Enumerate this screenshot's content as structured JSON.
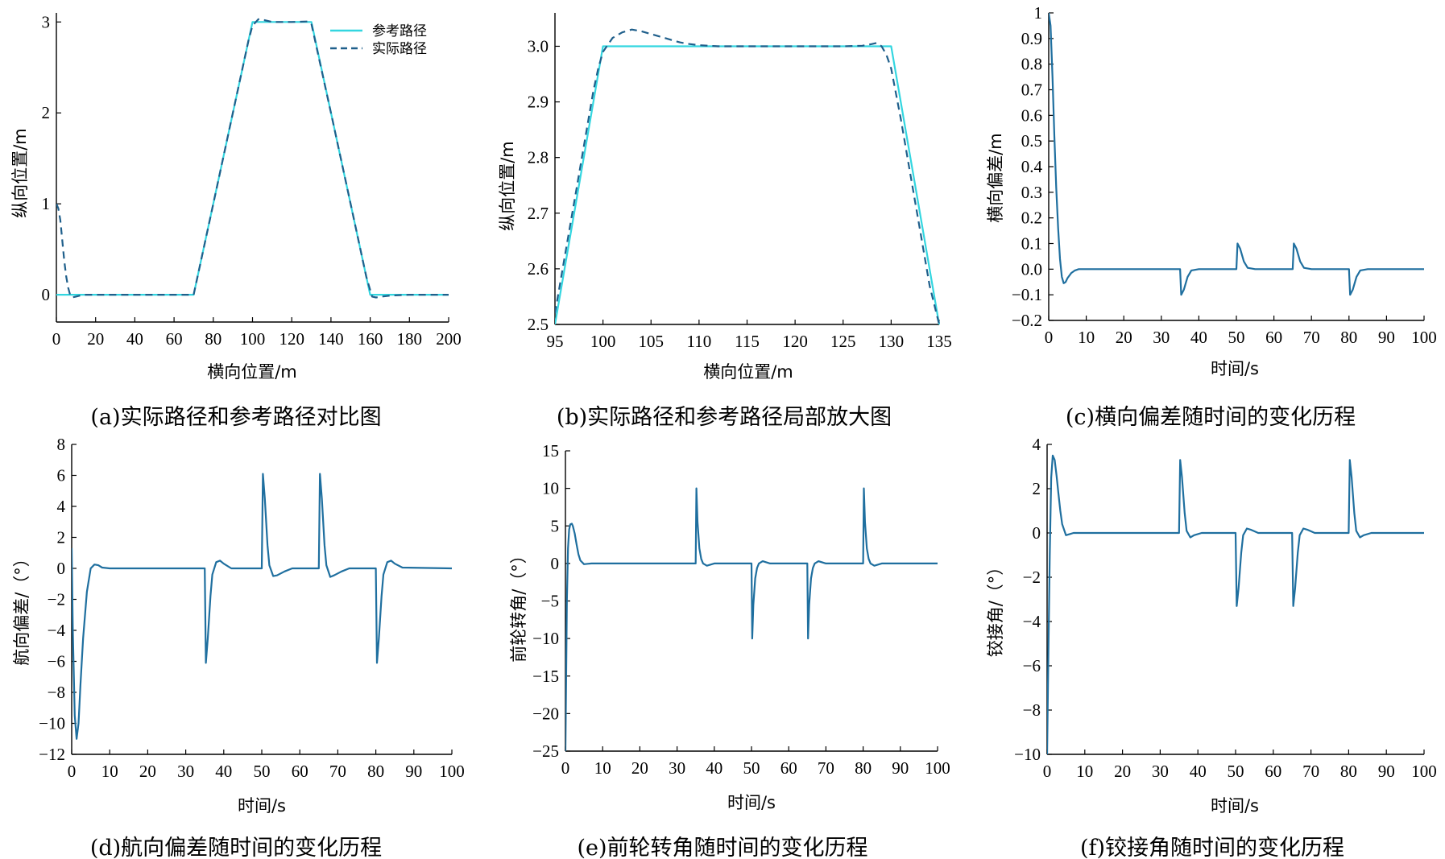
{
  "colors": {
    "reference": "#33d6e0",
    "actual": "#1f5f8b",
    "signal": "#1f6f9f",
    "axis": "#000000"
  },
  "chart_data": [
    {
      "id": "a",
      "type": "line",
      "caption": "(a)实际路径和参考路径对比图",
      "xlabel": "横向位置/m",
      "ylabel": "纵向位置/m",
      "xlim": [
        0,
        200
      ],
      "ylim": [
        -0.3,
        3.1
      ],
      "xticks": [
        0,
        20,
        40,
        60,
        80,
        100,
        120,
        140,
        160,
        180,
        200
      ],
      "yticks": [
        0,
        1,
        2,
        3
      ],
      "legend": {
        "position": "top-right",
        "entries": [
          "参考路径",
          "实际路径"
        ]
      },
      "series": [
        {
          "name": "参考路径",
          "style": "solid",
          "color": "#33d6e0",
          "x": [
            0,
            70,
            100,
            130,
            160,
            200
          ],
          "y": [
            0,
            0,
            3,
            3,
            0,
            0
          ]
        },
        {
          "name": "实际路径",
          "style": "dashed",
          "color": "#1f5f8b",
          "x": [
            0,
            1,
            2,
            3,
            4,
            5,
            6,
            7,
            8,
            10,
            12,
            15,
            20,
            30,
            50,
            70,
            80,
            90,
            98,
            100,
            103,
            106,
            110,
            120,
            128,
            130,
            140,
            150,
            158,
            161,
            163,
            166,
            170,
            180,
            200
          ],
          "y": [
            1.0,
            0.95,
            0.82,
            0.6,
            0.38,
            0.2,
            0.08,
            0.0,
            -0.03,
            -0.02,
            -0.01,
            0,
            0,
            0,
            0,
            0,
            1.0,
            2.0,
            2.8,
            2.96,
            3.03,
            3.02,
            3.0,
            3.0,
            3.005,
            2.98,
            2.0,
            1.0,
            0.2,
            -0.02,
            -0.03,
            -0.02,
            -0.01,
            0,
            0
          ]
        }
      ]
    },
    {
      "id": "b",
      "type": "line",
      "caption": "(b)实际路径和参考路径局部放大图",
      "xlabel": "横向位置/m",
      "ylabel": "纵向位置/m",
      "xlim": [
        95,
        135
      ],
      "ylim": [
        2.5,
        3.06
      ],
      "xticks": [
        95,
        100,
        105,
        110,
        115,
        120,
        125,
        130,
        135
      ],
      "yticks": [
        2.5,
        2.6,
        2.7,
        2.8,
        2.9,
        3.0
      ],
      "ytick_labels": [
        "2.5",
        "2.6",
        "2.7",
        "2.8",
        "2.9",
        "3.0"
      ],
      "series": [
        {
          "name": "参考路径",
          "style": "solid",
          "color": "#33d6e0",
          "x": [
            95,
            100,
            130,
            135
          ],
          "y": [
            2.5,
            3.0,
            3.0,
            2.5
          ]
        },
        {
          "name": "实际路径",
          "style": "dashed",
          "color": "#1f5f8b",
          "x": [
            95,
            96,
            97,
            98,
            99,
            99.5,
            100,
            101,
            102,
            103,
            104,
            105,
            106,
            107,
            108,
            109,
            110,
            112,
            115,
            120,
            125,
            127,
            128,
            128.5,
            129,
            129.5,
            130,
            131,
            132,
            133,
            134,
            135
          ],
          "y": [
            2.52,
            2.62,
            2.72,
            2.82,
            2.92,
            2.96,
            2.99,
            3.015,
            3.025,
            3.03,
            3.027,
            3.022,
            3.017,
            3.012,
            3.007,
            3.004,
            3.002,
            3.0,
            3.0,
            3.0,
            3.0,
            3.001,
            3.004,
            3.006,
            3.0,
            2.985,
            2.96,
            2.87,
            2.77,
            2.67,
            2.57,
            2.5
          ]
        }
      ]
    },
    {
      "id": "c",
      "type": "line",
      "caption": "(c)横向偏差随时间的变化历程",
      "xlabel": "时间/s",
      "ylabel": "横向偏差/m",
      "xlim": [
        0,
        100
      ],
      "ylim": [
        -0.2,
        1.0
      ],
      "xticks": [
        0,
        10,
        20,
        30,
        40,
        50,
        60,
        70,
        80,
        90,
        100
      ],
      "yticks": [
        -0.2,
        -0.1,
        0.0,
        0.1,
        0.2,
        0.3,
        0.4,
        0.5,
        0.6,
        0.7,
        0.8,
        0.9,
        1.0
      ],
      "ytick_labels": [
        "−0.2",
        "−0.1",
        "0.0",
        "0.1",
        "0.2",
        "0.3",
        "0.4",
        "0.5",
        "0.6",
        "0.7",
        "0.8",
        "0.9",
        "1"
      ],
      "series": [
        {
          "color": "#1f6f9f",
          "x": [
            0,
            0.5,
            1,
            1.5,
            2,
            2.5,
            3,
            3.5,
            4,
            4.5,
            5,
            6,
            7,
            8,
            10,
            35,
            35.3,
            36,
            37,
            38,
            40,
            50,
            50.3,
            51,
            52,
            53,
            55,
            65,
            65.3,
            66,
            67,
            68,
            70,
            80,
            80.3,
            81,
            82,
            83,
            85,
            100
          ],
          "y": [
            1.0,
            0.95,
            0.75,
            0.52,
            0.32,
            0.16,
            0.04,
            -0.03,
            -0.055,
            -0.05,
            -0.035,
            -0.015,
            -0.005,
            0,
            0,
            0,
            -0.1,
            -0.08,
            -0.03,
            -0.005,
            0,
            0,
            0.1,
            0.08,
            0.03,
            0.005,
            0,
            0,
            0.1,
            0.08,
            0.03,
            0.005,
            0,
            0,
            -0.1,
            -0.08,
            -0.03,
            -0.005,
            0,
            0
          ]
        }
      ]
    },
    {
      "id": "d",
      "type": "line",
      "caption": "(d)航向偏差随时间的变化历程",
      "xlabel": "时间/s",
      "ylabel": "航向偏差/（°）",
      "xlim": [
        0,
        100
      ],
      "ylim": [
        -12,
        8
      ],
      "xticks": [
        0,
        10,
        20,
        30,
        40,
        50,
        60,
        70,
        80,
        90,
        100
      ],
      "yticks": [
        -12,
        -10,
        -8,
        -6,
        -4,
        -2,
        0,
        2,
        4,
        6,
        8
      ],
      "ytick_labels": [
        "−12",
        "−10",
        "−8",
        "−6",
        "−4",
        "−2",
        "0",
        "2",
        "4",
        "6",
        "8"
      ],
      "series": [
        {
          "color": "#1f6f9f",
          "x": [
            0,
            0.3,
            0.8,
            1.3,
            1.8,
            2.3,
            3,
            4,
            5,
            6,
            7,
            8,
            10,
            35,
            35.3,
            35.8,
            36.5,
            37,
            38,
            39,
            40,
            42,
            50,
            50.3,
            50.8,
            51.5,
            52,
            53,
            54,
            56,
            58,
            65,
            65.3,
            65.8,
            66.5,
            67,
            68,
            69,
            71,
            73,
            80,
            80.3,
            80.8,
            81.5,
            82,
            83,
            84,
            85,
            87,
            100
          ],
          "y": [
            1.3,
            -4,
            -9.5,
            -11,
            -10,
            -7.5,
            -4.5,
            -1.5,
            0,
            0.25,
            0.2,
            0.05,
            0,
            0,
            -6.1,
            -4.5,
            -1.8,
            -0.4,
            0.4,
            0.5,
            0.3,
            0,
            0,
            6.1,
            4.5,
            1.5,
            0.2,
            -0.5,
            -0.45,
            -0.2,
            0,
            0,
            6.1,
            4.5,
            1.5,
            0.2,
            -0.55,
            -0.45,
            -0.2,
            0,
            0,
            -6.1,
            -4.5,
            -1.8,
            -0.4,
            0.4,
            0.5,
            0.3,
            0.05,
            0
          ]
        }
      ]
    },
    {
      "id": "e",
      "type": "line",
      "caption": "(e)前轮转角随时间的变化历程",
      "xlabel": "时间/s",
      "ylabel": "前轮转角/（°）",
      "xlim": [
        0,
        100
      ],
      "ylim": [
        -25,
        15
      ],
      "xticks": [
        0,
        10,
        20,
        30,
        40,
        50,
        60,
        70,
        80,
        90,
        100
      ],
      "yticks": [
        -25,
        -20,
        -15,
        -10,
        -5,
        0,
        5,
        10,
        15
      ],
      "ytick_labels": [
        "−25",
        "−20",
        "−15",
        "−10",
        "−5",
        "0",
        "5",
        "10",
        "15"
      ],
      "series": [
        {
          "color": "#1f6f9f",
          "x": [
            0,
            0.2,
            0.4,
            0.7,
            1,
            1.3,
            1.7,
            2,
            2.5,
            3,
            3.5,
            4,
            5,
            6,
            7,
            8,
            35,
            35.2,
            35.5,
            36,
            36.5,
            37,
            38,
            40,
            50,
            50.2,
            50.5,
            51,
            51.5,
            52,
            53,
            55,
            65,
            65.2,
            65.5,
            66,
            66.5,
            67,
            68,
            70,
            80,
            80.2,
            80.5,
            81,
            81.5,
            82,
            83,
            85,
            100
          ],
          "y": [
            -25,
            -15,
            -5,
            2,
            4.5,
            5.2,
            5.3,
            5,
            4,
            2.5,
            1.2,
            0.4,
            -0.1,
            -0.05,
            0,
            0,
            0,
            10,
            5.5,
            2,
            0.6,
            0,
            -0.3,
            0,
            0,
            -10,
            -5.5,
            -2,
            -0.6,
            0,
            0.3,
            0,
            0,
            -10,
            -5.5,
            -2,
            -0.6,
            0,
            0.3,
            0,
            0,
            10,
            5.5,
            2,
            0.6,
            0,
            -0.3,
            0,
            0
          ]
        }
      ]
    },
    {
      "id": "f",
      "type": "line",
      "caption": "(f)铰接角随时间的变化历程",
      "xlabel": "时间/s",
      "ylabel": "铰接角/（°）",
      "xlim": [
        0,
        100
      ],
      "ylim": [
        -10,
        4
      ],
      "xticks": [
        0,
        10,
        20,
        30,
        40,
        50,
        60,
        70,
        80,
        90,
        100
      ],
      "yticks": [
        -10,
        -8,
        -6,
        -4,
        -2,
        0,
        2,
        4
      ],
      "ytick_labels": [
        "−10",
        "−8",
        "−6",
        "−4",
        "−2",
        "0",
        "2",
        "4"
      ],
      "series": [
        {
          "color": "#1f6f9f",
          "x": [
            0,
            0.3,
            0.7,
            1.1,
            1.5,
            2,
            2.5,
            3,
            3.5,
            4,
            5,
            6,
            7,
            8,
            10,
            35,
            35.3,
            35.8,
            36.5,
            37,
            38,
            39,
            41,
            50,
            50.3,
            50.8,
            51.5,
            52,
            53,
            54,
            56,
            65,
            65.3,
            65.8,
            66.5,
            67,
            68,
            69,
            71,
            80,
            80.3,
            80.8,
            81.5,
            82,
            83,
            84,
            86,
            100
          ],
          "y": [
            -10,
            -6,
            -1,
            2.5,
            3.5,
            3.3,
            2.6,
            1.8,
            1.0,
            0.4,
            -0.1,
            -0.05,
            0,
            0,
            0,
            0,
            3.3,
            2.5,
            0.9,
            0.1,
            -0.2,
            -0.1,
            0,
            0,
            -3.3,
            -2.5,
            -0.9,
            -0.1,
            0.2,
            0.15,
            0,
            0,
            -3.3,
            -2.5,
            -0.9,
            -0.1,
            0.2,
            0.15,
            0,
            0,
            3.3,
            2.5,
            0.9,
            0.1,
            -0.2,
            -0.1,
            0,
            0
          ]
        }
      ]
    }
  ]
}
